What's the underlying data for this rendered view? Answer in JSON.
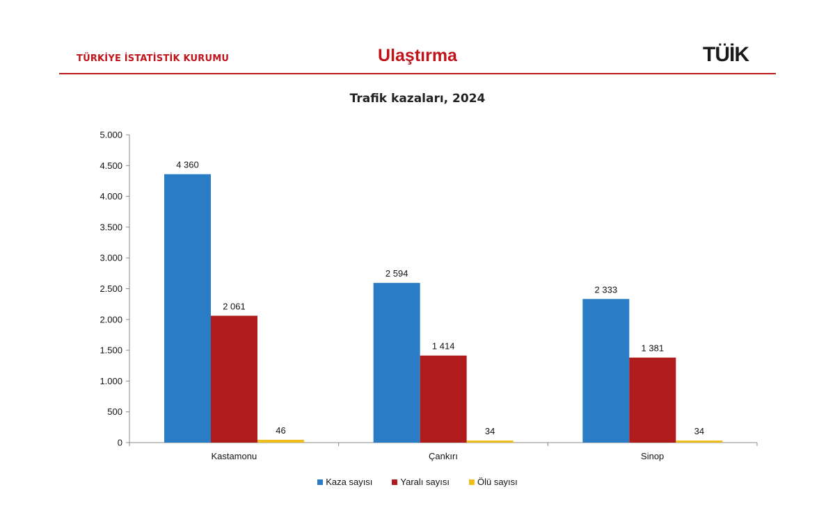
{
  "header": {
    "organization": "TÜRKİYE İSTATİSTİK KURUMU",
    "section_title": "Ulaştırma",
    "logo_text": "TÜİK"
  },
  "colors": {
    "brand": "#c0141b",
    "kaza": "#2a7dc4",
    "yarali": "#b01c1c",
    "olu": "#f0bd1e"
  },
  "chart_data": {
    "type": "bar",
    "title": "Trafik kazaları, 2024",
    "categories": [
      "Kastamonu",
      "Çankırı",
      "Sinop"
    ],
    "series": [
      {
        "name": "Kaza sayısı",
        "values": [
          4360,
          2594,
          2333
        ],
        "labels": [
          "4 360",
          "2 594",
          "2 333"
        ]
      },
      {
        "name": "Yaralı sayısı",
        "values": [
          2061,
          1414,
          1381
        ],
        "labels": [
          "2 061",
          "1 414",
          "1 381"
        ]
      },
      {
        "name": "Ölü sayısı",
        "values": [
          46,
          34,
          34
        ],
        "labels": [
          "46",
          "34",
          "34"
        ]
      }
    ],
    "y_ticks": [
      0,
      500,
      1000,
      1500,
      2000,
      2500,
      3000,
      3500,
      4000,
      4500,
      5000
    ],
    "y_tick_labels": [
      "0",
      "500",
      "1.000",
      "1.500",
      "2.000",
      "2.500",
      "3.000",
      "3.500",
      "4.000",
      "4.500",
      "5.000"
    ],
    "ylim": [
      0,
      5000
    ],
    "legend_position": "bottom",
    "grid": false
  }
}
